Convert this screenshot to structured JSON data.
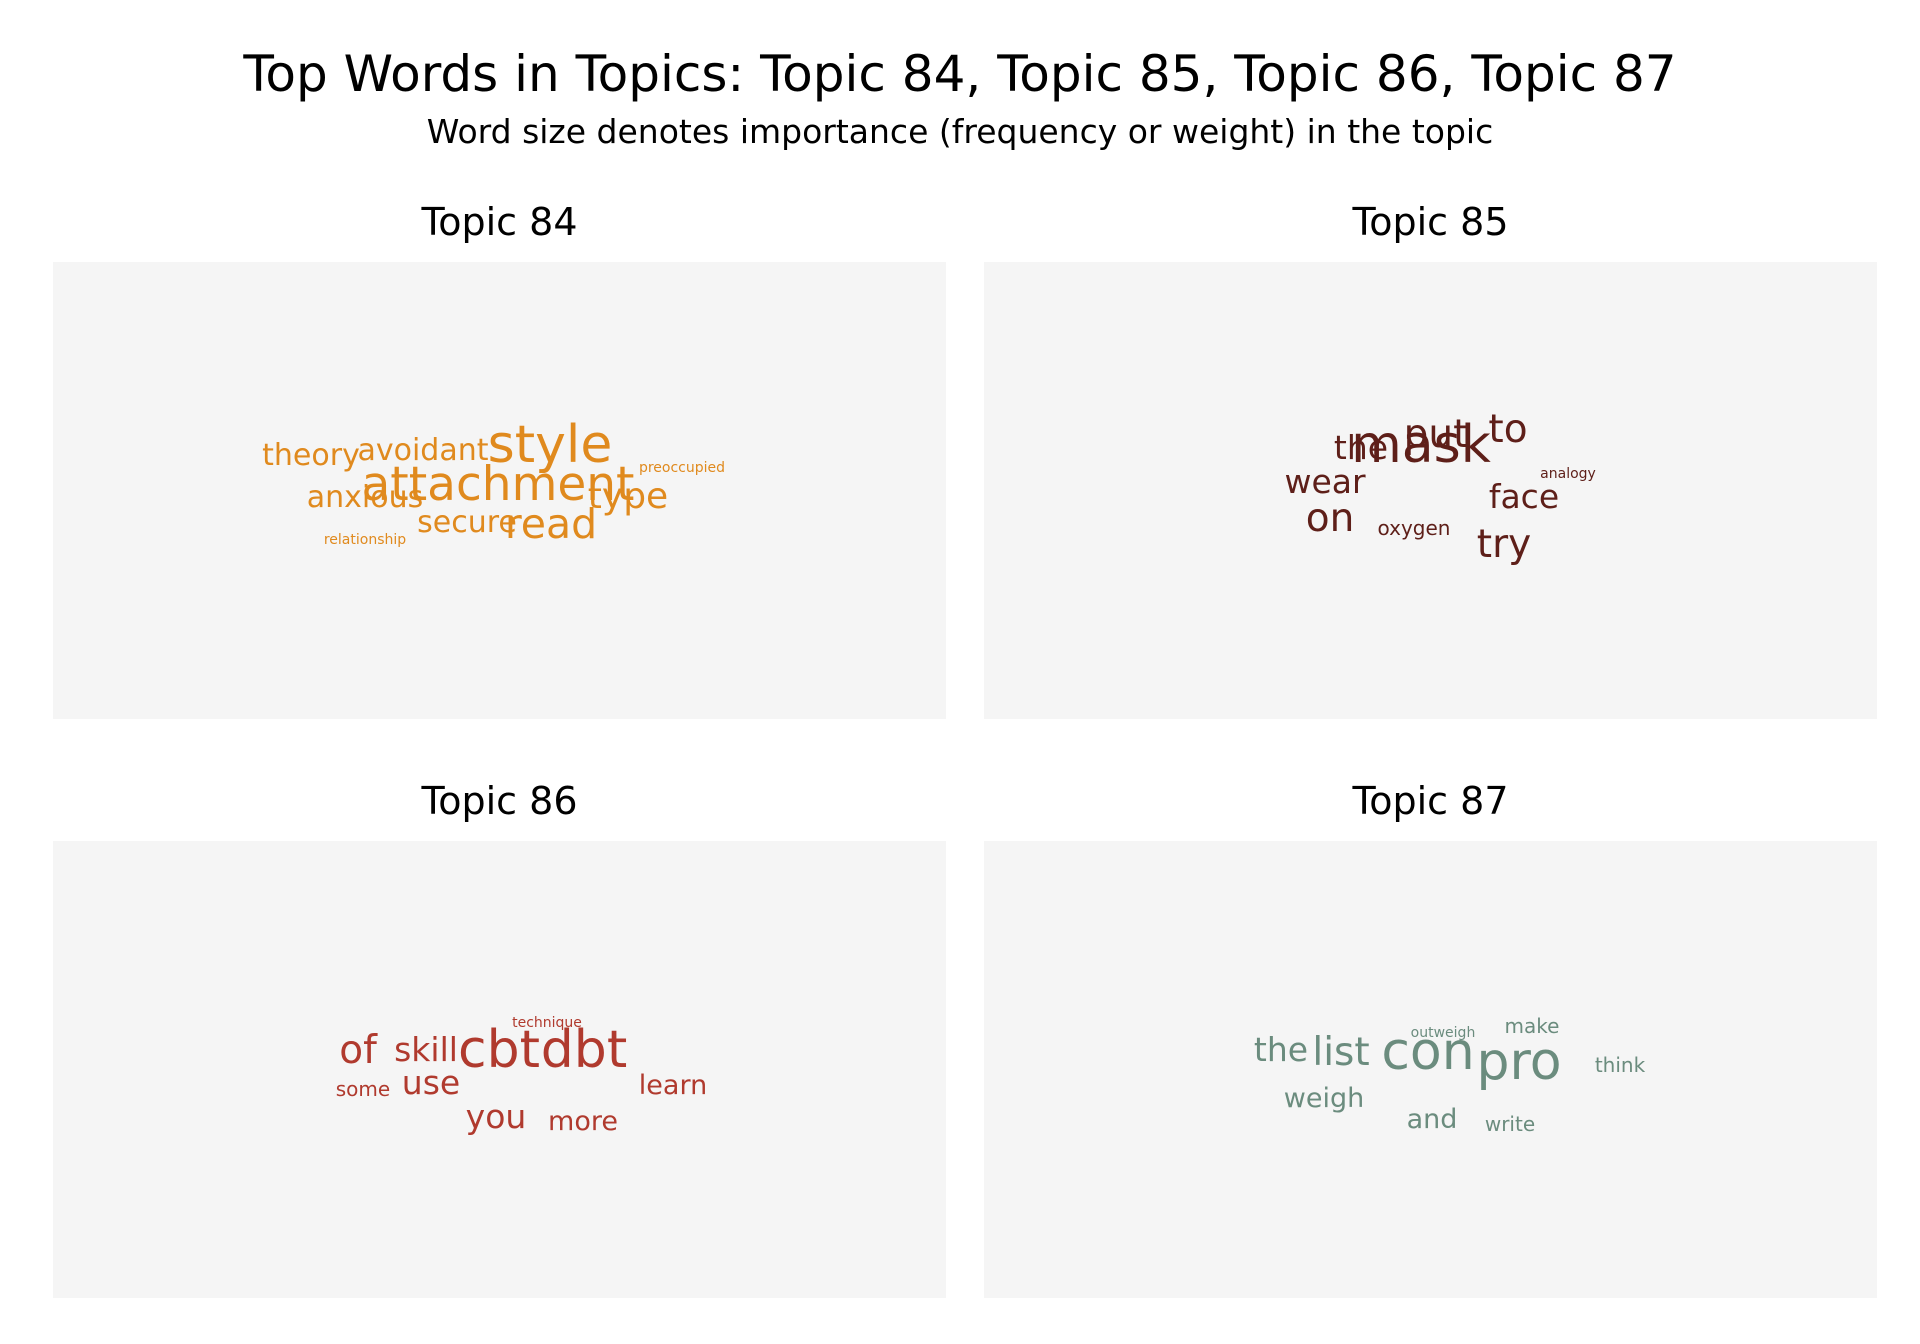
{
  "header": {
    "title": "Top Words in Topics: Topic 84, Topic 85, Topic 86, Topic 87",
    "subtitle": "Word size denotes importance (frequency or weight) in the topic"
  },
  "chart_data": [
    {
      "type": "wordcloud",
      "title": "Topic 84",
      "color": "#e08a1e",
      "words": [
        {
          "text": "style",
          "weight": 10
        },
        {
          "text": "attachment",
          "weight": 9
        },
        {
          "text": "read",
          "weight": 8
        },
        {
          "text": "type",
          "weight": 7
        },
        {
          "text": "anxious",
          "weight": 6
        },
        {
          "text": "secure",
          "weight": 6
        },
        {
          "text": "theory",
          "weight": 6
        },
        {
          "text": "avoidant",
          "weight": 6
        },
        {
          "text": "preoccupied",
          "weight": 3
        },
        {
          "text": "relationship",
          "weight": 3
        }
      ]
    },
    {
      "type": "wordcloud",
      "title": "Topic 85",
      "color": "#5e1f19",
      "words": [
        {
          "text": "mask",
          "weight": 10
        },
        {
          "text": "on",
          "weight": 8
        },
        {
          "text": "put",
          "weight": 8
        },
        {
          "text": "to",
          "weight": 8
        },
        {
          "text": "try",
          "weight": 8
        },
        {
          "text": "wear",
          "weight": 7
        },
        {
          "text": "face",
          "weight": 7
        },
        {
          "text": "the",
          "weight": 7
        },
        {
          "text": "oxygen",
          "weight": 5
        },
        {
          "text": "analogy",
          "weight": 4
        }
      ]
    },
    {
      "type": "wordcloud",
      "title": "Topic 86",
      "color": "#b03a2e",
      "words": [
        {
          "text": "cbt",
          "weight": 10
        },
        {
          "text": "dbt",
          "weight": 10
        },
        {
          "text": "of",
          "weight": 8
        },
        {
          "text": "skill",
          "weight": 7
        },
        {
          "text": "use",
          "weight": 7
        },
        {
          "text": "you",
          "weight": 7
        },
        {
          "text": "more",
          "weight": 6
        },
        {
          "text": "learn",
          "weight": 6
        },
        {
          "text": "some",
          "weight": 5
        },
        {
          "text": "technique",
          "weight": 4
        }
      ]
    },
    {
      "type": "wordcloud",
      "title": "Topic 87",
      "color": "#6b8c7e",
      "words": [
        {
          "text": "con",
          "weight": 10
        },
        {
          "text": "pro",
          "weight": 10
        },
        {
          "text": "list",
          "weight": 8
        },
        {
          "text": "the",
          "weight": 7
        },
        {
          "text": "and",
          "weight": 6
        },
        {
          "text": "weigh",
          "weight": 6
        },
        {
          "text": "write",
          "weight": 5
        },
        {
          "text": "think",
          "weight": 5
        },
        {
          "text": "make",
          "weight": 5
        },
        {
          "text": "outweigh",
          "weight": 4
        }
      ]
    }
  ]
}
